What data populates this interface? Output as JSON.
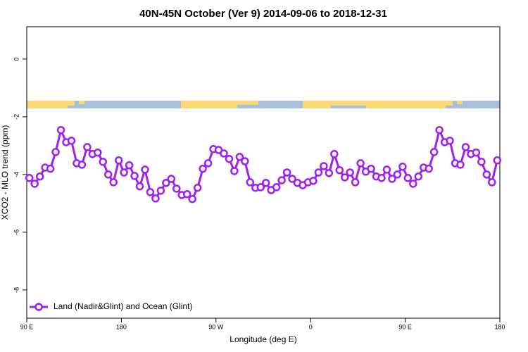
{
  "chart_data": {
    "type": "line",
    "title": "40N-45N October (Ver 9)   2014-09-06 to 2018-12-31",
    "x_label": "Longitude (deg E)",
    "y_label": "XCO2 - MLO trend (ppm)",
    "x": [
      92.5,
      97.5,
      102.5,
      107.5,
      112.5,
      117.5,
      122.5,
      127.5,
      132.5,
      137.5,
      142.5,
      147.5,
      152.5,
      157.5,
      162.5,
      167.5,
      172.5,
      177.5,
      182.5,
      187.5,
      192.5,
      197.5,
      202.5,
      207.5,
      212.5,
      217.5,
      222.5,
      227.5,
      232.5,
      237.5,
      242.5,
      247.5,
      252.5,
      257.5,
      262.5,
      267.5,
      272.5,
      277.5,
      282.5,
      287.5,
      292.5,
      297.5,
      302.5,
      307.5,
      312.5,
      317.5,
      322.5,
      327.5,
      332.5,
      337.5,
      342.5,
      347.5,
      352.5,
      357.5,
      362.5,
      367.5,
      372.5,
      377.5,
      382.5,
      387.5,
      392.5,
      397.5,
      402.5,
      407.5,
      412.5,
      417.5,
      422.5,
      427.5,
      432.5,
      437.5,
      442.5,
      447.5,
      452.5,
      457.5,
      462.5,
      467.5,
      472.5,
      477.5,
      482.5,
      487.5,
      492.5,
      497.5,
      502.5,
      507.5,
      512.5,
      517.5,
      522.5,
      527.5,
      532.5,
      537.5
    ],
    "series": [
      {
        "name": "Land (Nadir&Glint) and Ocean (Glint)",
        "color": "#a020f0",
        "values": [
          -4.12,
          -4.32,
          -4.07,
          -3.76,
          -3.8,
          -3.22,
          -2.46,
          -2.88,
          -2.83,
          -3.61,
          -3.66,
          -3.05,
          -3.29,
          -3.24,
          -3.56,
          -4.0,
          -4.27,
          -3.51,
          -3.93,
          -3.68,
          -4.05,
          -4.41,
          -3.83,
          -4.61,
          -4.83,
          -4.56,
          -4.29,
          -4.15,
          -4.49,
          -4.71,
          -4.68,
          -4.85,
          -4.46,
          -3.8,
          -3.61,
          -3.12,
          -3.15,
          -3.27,
          -3.46,
          -3.88,
          -3.39,
          -3.54,
          -4.27,
          -4.46,
          -4.44,
          -4.29,
          -4.54,
          -4.44,
          -4.2,
          -3.93,
          -4.15,
          -4.29,
          -4.37,
          -4.27,
          -4.22,
          -3.93,
          -3.71,
          -3.95,
          -3.29,
          -3.85,
          -4.1,
          -3.93,
          -4.27,
          -3.61,
          -3.9,
          -3.8,
          -4.07,
          -4.12,
          -3.83,
          -4.15,
          -4.0,
          -3.73,
          -4.12,
          -4.32,
          -4.07,
          -3.76,
          -3.8,
          -3.22,
          -2.46,
          -2.88,
          -2.83,
          -3.61,
          -3.66,
          -3.05,
          -3.29,
          -3.24,
          -3.56,
          -4.0,
          -4.27,
          -3.51
        ]
      }
    ],
    "xlim": [
      90,
      540
    ],
    "xticks": [
      {
        "value": 90,
        "label": "90 E"
      },
      180,
      {
        "value": 270,
        "label": "90 W"
      },
      {
        "value": 360,
        "label": "0"
      },
      {
        "value": 450,
        "label": "90 E"
      },
      {
        "value": 540,
        "label": "180"
      }
    ],
    "ylim": [
      -8.98,
      1.12
    ],
    "yticks": [
      0,
      -2,
      -4,
      -6,
      -8
    ],
    "legend": "bottomleft"
  }
}
